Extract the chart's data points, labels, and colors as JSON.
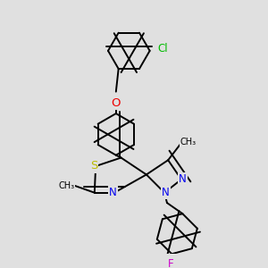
{
  "background_color": "#e0e0e0",
  "bond_color": "#000000",
  "bond_width": 1.4,
  "atom_colors": {
    "C": "#000000",
    "N": "#0000ee",
    "O": "#ee0000",
    "S": "#bbbb00",
    "Cl": "#00bb00",
    "F": "#cc00cc"
  },
  "font_size": 8.5
}
